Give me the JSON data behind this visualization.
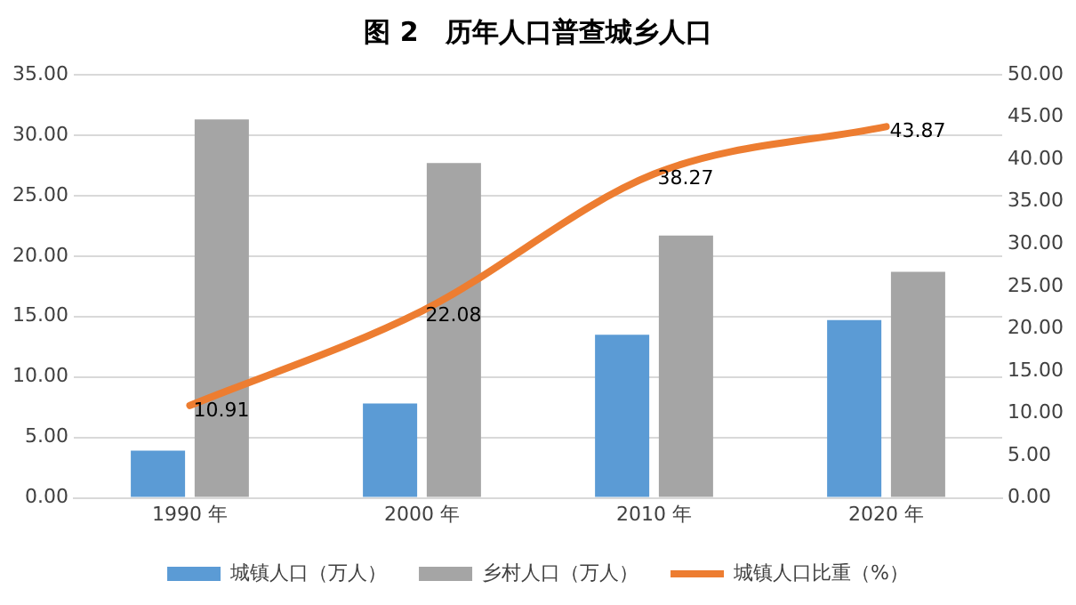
{
  "chart_data": {
    "type": "bar",
    "title": "图 2　历年人口普查城乡人口",
    "categories": [
      "1990 年",
      "2000 年",
      "2010 年",
      "2020 年"
    ],
    "series": [
      {
        "name": "城镇人口（万人）",
        "color": "#5b9bd5",
        "values": [
          3.9,
          7.8,
          13.5,
          14.7
        ]
      },
      {
        "name": "乡村人口（万人）",
        "color": "#a5a5a5",
        "values": [
          31.3,
          27.7,
          21.7,
          18.7
        ]
      },
      {
        "name": "城镇人口比重（%）",
        "type": "line",
        "axis": "y2",
        "color": "#ed7d31",
        "values": [
          10.91,
          22.08,
          38.27,
          43.87
        ],
        "value_labels": [
          "10.91",
          "22.08",
          "38.27",
          "43.87"
        ]
      }
    ],
    "ylim": [
      0,
      35
    ],
    "yticks": [
      {
        "value": 0,
        "label": "0.00"
      },
      {
        "value": 5,
        "label": "5.00"
      },
      {
        "value": 10,
        "label": "10.00"
      },
      {
        "value": 15,
        "label": "15.00"
      },
      {
        "value": 20,
        "label": "20.00"
      },
      {
        "value": 25,
        "label": "25.00"
      },
      {
        "value": 30,
        "label": "30.00"
      },
      {
        "value": 35,
        "label": "35.00"
      }
    ],
    "y2lim": [
      0,
      50
    ],
    "y2ticks": [
      {
        "value": 0,
        "label": "0.00"
      },
      {
        "value": 5,
        "label": "5.00"
      },
      {
        "value": 10,
        "label": "10.00"
      },
      {
        "value": 15,
        "label": "15.00"
      },
      {
        "value": 20,
        "label": "20.00"
      },
      {
        "value": 25,
        "label": "25.00"
      },
      {
        "value": 30,
        "label": "30.00"
      },
      {
        "value": 35,
        "label": "35.00"
      },
      {
        "value": 40,
        "label": "40.00"
      },
      {
        "value": 45,
        "label": "45.00"
      },
      {
        "value": 50,
        "label": "50.00"
      }
    ],
    "grid": "y",
    "legend": "bottom",
    "marker": "none"
  }
}
